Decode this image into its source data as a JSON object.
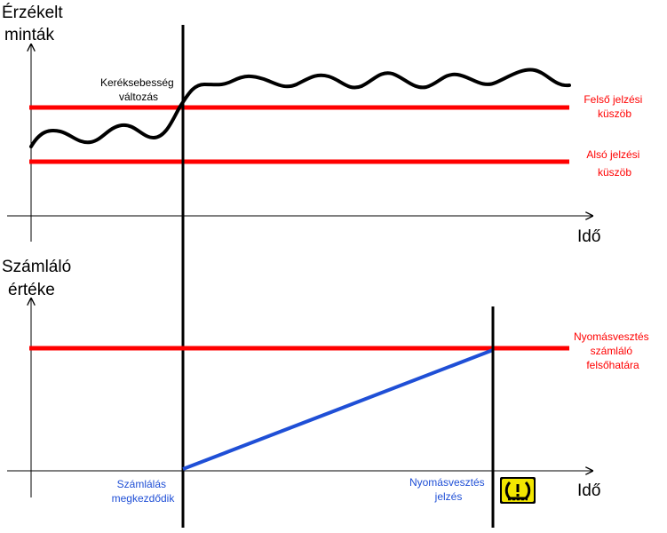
{
  "top_panel": {
    "y_axis_label": [
      "Érzékelt",
      "minták"
    ],
    "x_axis_label": "Idő",
    "event_label": [
      "Keréksebesség",
      "változás"
    ],
    "upper_threshold_label": [
      "Felső jelzési",
      "küszöb"
    ],
    "lower_threshold_label": [
      "Alsó jelzési",
      "küszöb"
    ]
  },
  "bottom_panel": {
    "y_axis_label": [
      "Számláló",
      "értéke"
    ],
    "x_axis_label": "Idő",
    "limit_label": [
      "Nyomásvesztés",
      "számláló",
      "felsőhatára"
    ],
    "start_label": [
      "Számlálás",
      "megkezdődik"
    ],
    "warning_label": [
      "Nyomásvesztés",
      "jelzés"
    ],
    "warning_icon": "tire-pressure-warning-icon"
  },
  "colors": {
    "threshold": "#ff0000",
    "counter": "#1f4fd6",
    "signal": "#000000",
    "warning_icon_bg": "#f2e600"
  }
}
